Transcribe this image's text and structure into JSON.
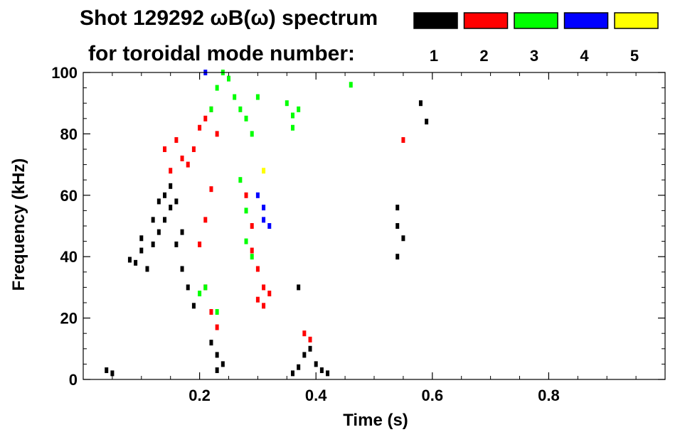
{
  "chart_data": {
    "type": "heatmap",
    "title_line1": "Shot 129292 ωB(ω) spectrum",
    "title_line2": "for toroidal mode number:",
    "xlabel": "Time (s)",
    "ylabel": "Frequency (kHz)",
    "xlim": [
      0.0,
      1.0
    ],
    "ylim": [
      0,
      100
    ],
    "xticks": [
      0.2,
      0.4,
      0.6,
      0.8
    ],
    "xtick_labels": [
      "0.2",
      "0.4",
      "0.6",
      "0.8"
    ],
    "yticks": [
      0,
      20,
      40,
      60,
      80,
      100
    ],
    "ytick_labels": [
      "0",
      "20",
      "40",
      "60",
      "80",
      "100"
    ],
    "legend": [
      {
        "mode": "1",
        "color": "#000000"
      },
      {
        "mode": "2",
        "color": "#ff0000"
      },
      {
        "mode": "3",
        "color": "#00ff00"
      },
      {
        "mode": "4",
        "color": "#0000ff"
      },
      {
        "mode": "5",
        "color": "#ffff00"
      }
    ],
    "legend_placement": "top-right",
    "grid": false,
    "series": [
      {
        "mode": "1",
        "color": "#000000",
        "points": [
          [
            0.04,
            3
          ],
          [
            0.05,
            2
          ],
          [
            0.08,
            39
          ],
          [
            0.09,
            38
          ],
          [
            0.1,
            42
          ],
          [
            0.1,
            46
          ],
          [
            0.11,
            36
          ],
          [
            0.12,
            52
          ],
          [
            0.12,
            44
          ],
          [
            0.13,
            58
          ],
          [
            0.13,
            48
          ],
          [
            0.14,
            60
          ],
          [
            0.14,
            52
          ],
          [
            0.15,
            63
          ],
          [
            0.15,
            56
          ],
          [
            0.16,
            58
          ],
          [
            0.16,
            44
          ],
          [
            0.17,
            48
          ],
          [
            0.17,
            36
          ],
          [
            0.18,
            30
          ],
          [
            0.19,
            24
          ],
          [
            0.22,
            12
          ],
          [
            0.23,
            8
          ],
          [
            0.24,
            5
          ],
          [
            0.23,
            3
          ],
          [
            0.36,
            2
          ],
          [
            0.37,
            4
          ],
          [
            0.38,
            8
          ],
          [
            0.39,
            10
          ],
          [
            0.4,
            5
          ],
          [
            0.41,
            3
          ],
          [
            0.42,
            2
          ],
          [
            0.37,
            30
          ],
          [
            0.54,
            56
          ],
          [
            0.54,
            50
          ],
          [
            0.55,
            46
          ],
          [
            0.54,
            40
          ],
          [
            0.58,
            90
          ],
          [
            0.59,
            84
          ]
        ]
      },
      {
        "mode": "2",
        "color": "#ff0000",
        "points": [
          [
            0.14,
            75
          ],
          [
            0.15,
            68
          ],
          [
            0.16,
            78
          ],
          [
            0.17,
            72
          ],
          [
            0.18,
            70
          ],
          [
            0.19,
            75
          ],
          [
            0.2,
            82
          ],
          [
            0.21,
            85
          ],
          [
            0.22,
            88
          ],
          [
            0.23,
            80
          ],
          [
            0.22,
            62
          ],
          [
            0.21,
            52
          ],
          [
            0.2,
            44
          ],
          [
            0.21,
            30
          ],
          [
            0.22,
            22
          ],
          [
            0.23,
            17
          ],
          [
            0.28,
            60
          ],
          [
            0.29,
            50
          ],
          [
            0.29,
            42
          ],
          [
            0.3,
            36
          ],
          [
            0.31,
            30
          ],
          [
            0.3,
            26
          ],
          [
            0.31,
            24
          ],
          [
            0.32,
            28
          ],
          [
            0.38,
            15
          ],
          [
            0.39,
            13
          ],
          [
            0.55,
            78
          ]
        ]
      },
      {
        "mode": "3",
        "color": "#00ff00",
        "points": [
          [
            0.22,
            88
          ],
          [
            0.23,
            95
          ],
          [
            0.24,
            100
          ],
          [
            0.25,
            98
          ],
          [
            0.26,
            92
          ],
          [
            0.27,
            88
          ],
          [
            0.28,
            85
          ],
          [
            0.29,
            80
          ],
          [
            0.3,
            92
          ],
          [
            0.27,
            65
          ],
          [
            0.28,
            55
          ],
          [
            0.28,
            45
          ],
          [
            0.29,
            40
          ],
          [
            0.21,
            30
          ],
          [
            0.23,
            22
          ],
          [
            0.2,
            28
          ],
          [
            0.35,
            90
          ],
          [
            0.36,
            86
          ],
          [
            0.36,
            82
          ],
          [
            0.37,
            88
          ],
          [
            0.46,
            96
          ]
        ]
      },
      {
        "mode": "4",
        "color": "#0000ff",
        "points": [
          [
            0.3,
            60
          ],
          [
            0.31,
            56
          ],
          [
            0.31,
            52
          ],
          [
            0.32,
            50
          ],
          [
            0.21,
            100
          ]
        ]
      },
      {
        "mode": "5",
        "color": "#ffff00",
        "points": [
          [
            0.31,
            68
          ]
        ]
      }
    ]
  }
}
